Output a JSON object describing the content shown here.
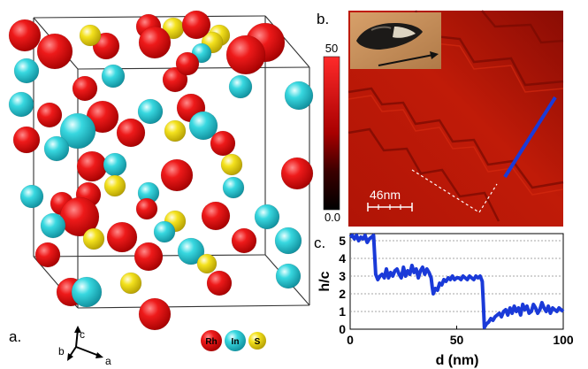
{
  "panel_a": {
    "label": "a.",
    "axes": {
      "c": "c",
      "b": "b",
      "a": "a"
    },
    "legend": [
      {
        "symbol": "Rh",
        "color": "#e01010"
      },
      {
        "symbol": "In",
        "color": "#2ad0d8"
      },
      {
        "symbol": "S",
        "color": "#f2df18"
      }
    ]
  },
  "panel_b": {
    "label": "b.",
    "colorbar": {
      "max_label": "50",
      "min_label": "0.0",
      "top_color": "#ff2020",
      "mid_color": "#8a0000",
      "bottom_color": "#000000"
    },
    "scale_bar": "46nm",
    "line_color": "#1a3ad8",
    "image_color": "#c81a0a"
  },
  "panel_c": {
    "label": "c.",
    "xlabel": "d (nm)",
    "ylabel": "h/c",
    "line_color": "#1a3ad8"
  },
  "chart_data": {
    "type": "line",
    "title": "",
    "xlabel": "d (nm)",
    "ylabel": "h/c",
    "xlim": [
      0,
      100
    ],
    "ylim": [
      0,
      5.4
    ],
    "xticks": [
      0,
      50,
      100
    ],
    "yticks": [
      0,
      1,
      2,
      3,
      4,
      5
    ],
    "grid": true,
    "series": [
      {
        "x": [
          0,
          1,
          2,
          3,
          4,
          5,
          6,
          7,
          8,
          9,
          10,
          11,
          11.5,
          12,
          13,
          14,
          15,
          16,
          17,
          18,
          19,
          20,
          21,
          22,
          23,
          24,
          25,
          26,
          27,
          28,
          29,
          30,
          31,
          32,
          33,
          34,
          35,
          36,
          37,
          38,
          38.5,
          39,
          40,
          41,
          42,
          43,
          44,
          45,
          46,
          47,
          48,
          49,
          50,
          51,
          52,
          53,
          54,
          55,
          56,
          57,
          58,
          59,
          60,
          61,
          62,
          62.5,
          63,
          64,
          65,
          66,
          67,
          68,
          69,
          70,
          71,
          72,
          73,
          74,
          75,
          76,
          77,
          78,
          79,
          80,
          81,
          82,
          83,
          84,
          85,
          86,
          87,
          88,
          89,
          90,
          91,
          92,
          93,
          94,
          95,
          96,
          97,
          98,
          99,
          100
        ],
        "y": [
          5.2,
          5.3,
          5.1,
          5.3,
          5.0,
          5.2,
          5.1,
          5.3,
          4.9,
          5.1,
          5.2,
          5.3,
          4.2,
          3.1,
          2.8,
          3.0,
          3.1,
          2.9,
          3.4,
          2.9,
          3.2,
          3.0,
          3.3,
          3.4,
          3.1,
          2.9,
          3.5,
          3.0,
          3.3,
          3.1,
          3.6,
          3.2,
          3.4,
          2.9,
          3.3,
          3.5,
          3.1,
          3.4,
          3.2,
          2.9,
          2.4,
          2.0,
          2.3,
          2.2,
          2.6,
          2.5,
          2.8,
          2.7,
          2.9,
          2.8,
          3.0,
          2.8,
          2.9,
          2.9,
          2.8,
          3.0,
          2.9,
          2.8,
          3.0,
          2.9,
          2.8,
          3.0,
          2.9,
          3.0,
          2.7,
          1.5,
          0.1,
          0.3,
          0.4,
          0.6,
          0.5,
          0.7,
          0.8,
          0.9,
          0.7,
          1.0,
          1.1,
          0.8,
          1.2,
          0.9,
          1.3,
          1.0,
          1.2,
          0.8,
          1.4,
          1.1,
          1.3,
          0.9,
          1.0,
          1.4,
          1.2,
          0.9,
          1.1,
          1.5,
          1.2,
          1.0,
          1.3,
          0.9,
          1.2,
          1.1,
          1.0,
          1.2,
          1.1,
          1.0
        ]
      }
    ]
  }
}
